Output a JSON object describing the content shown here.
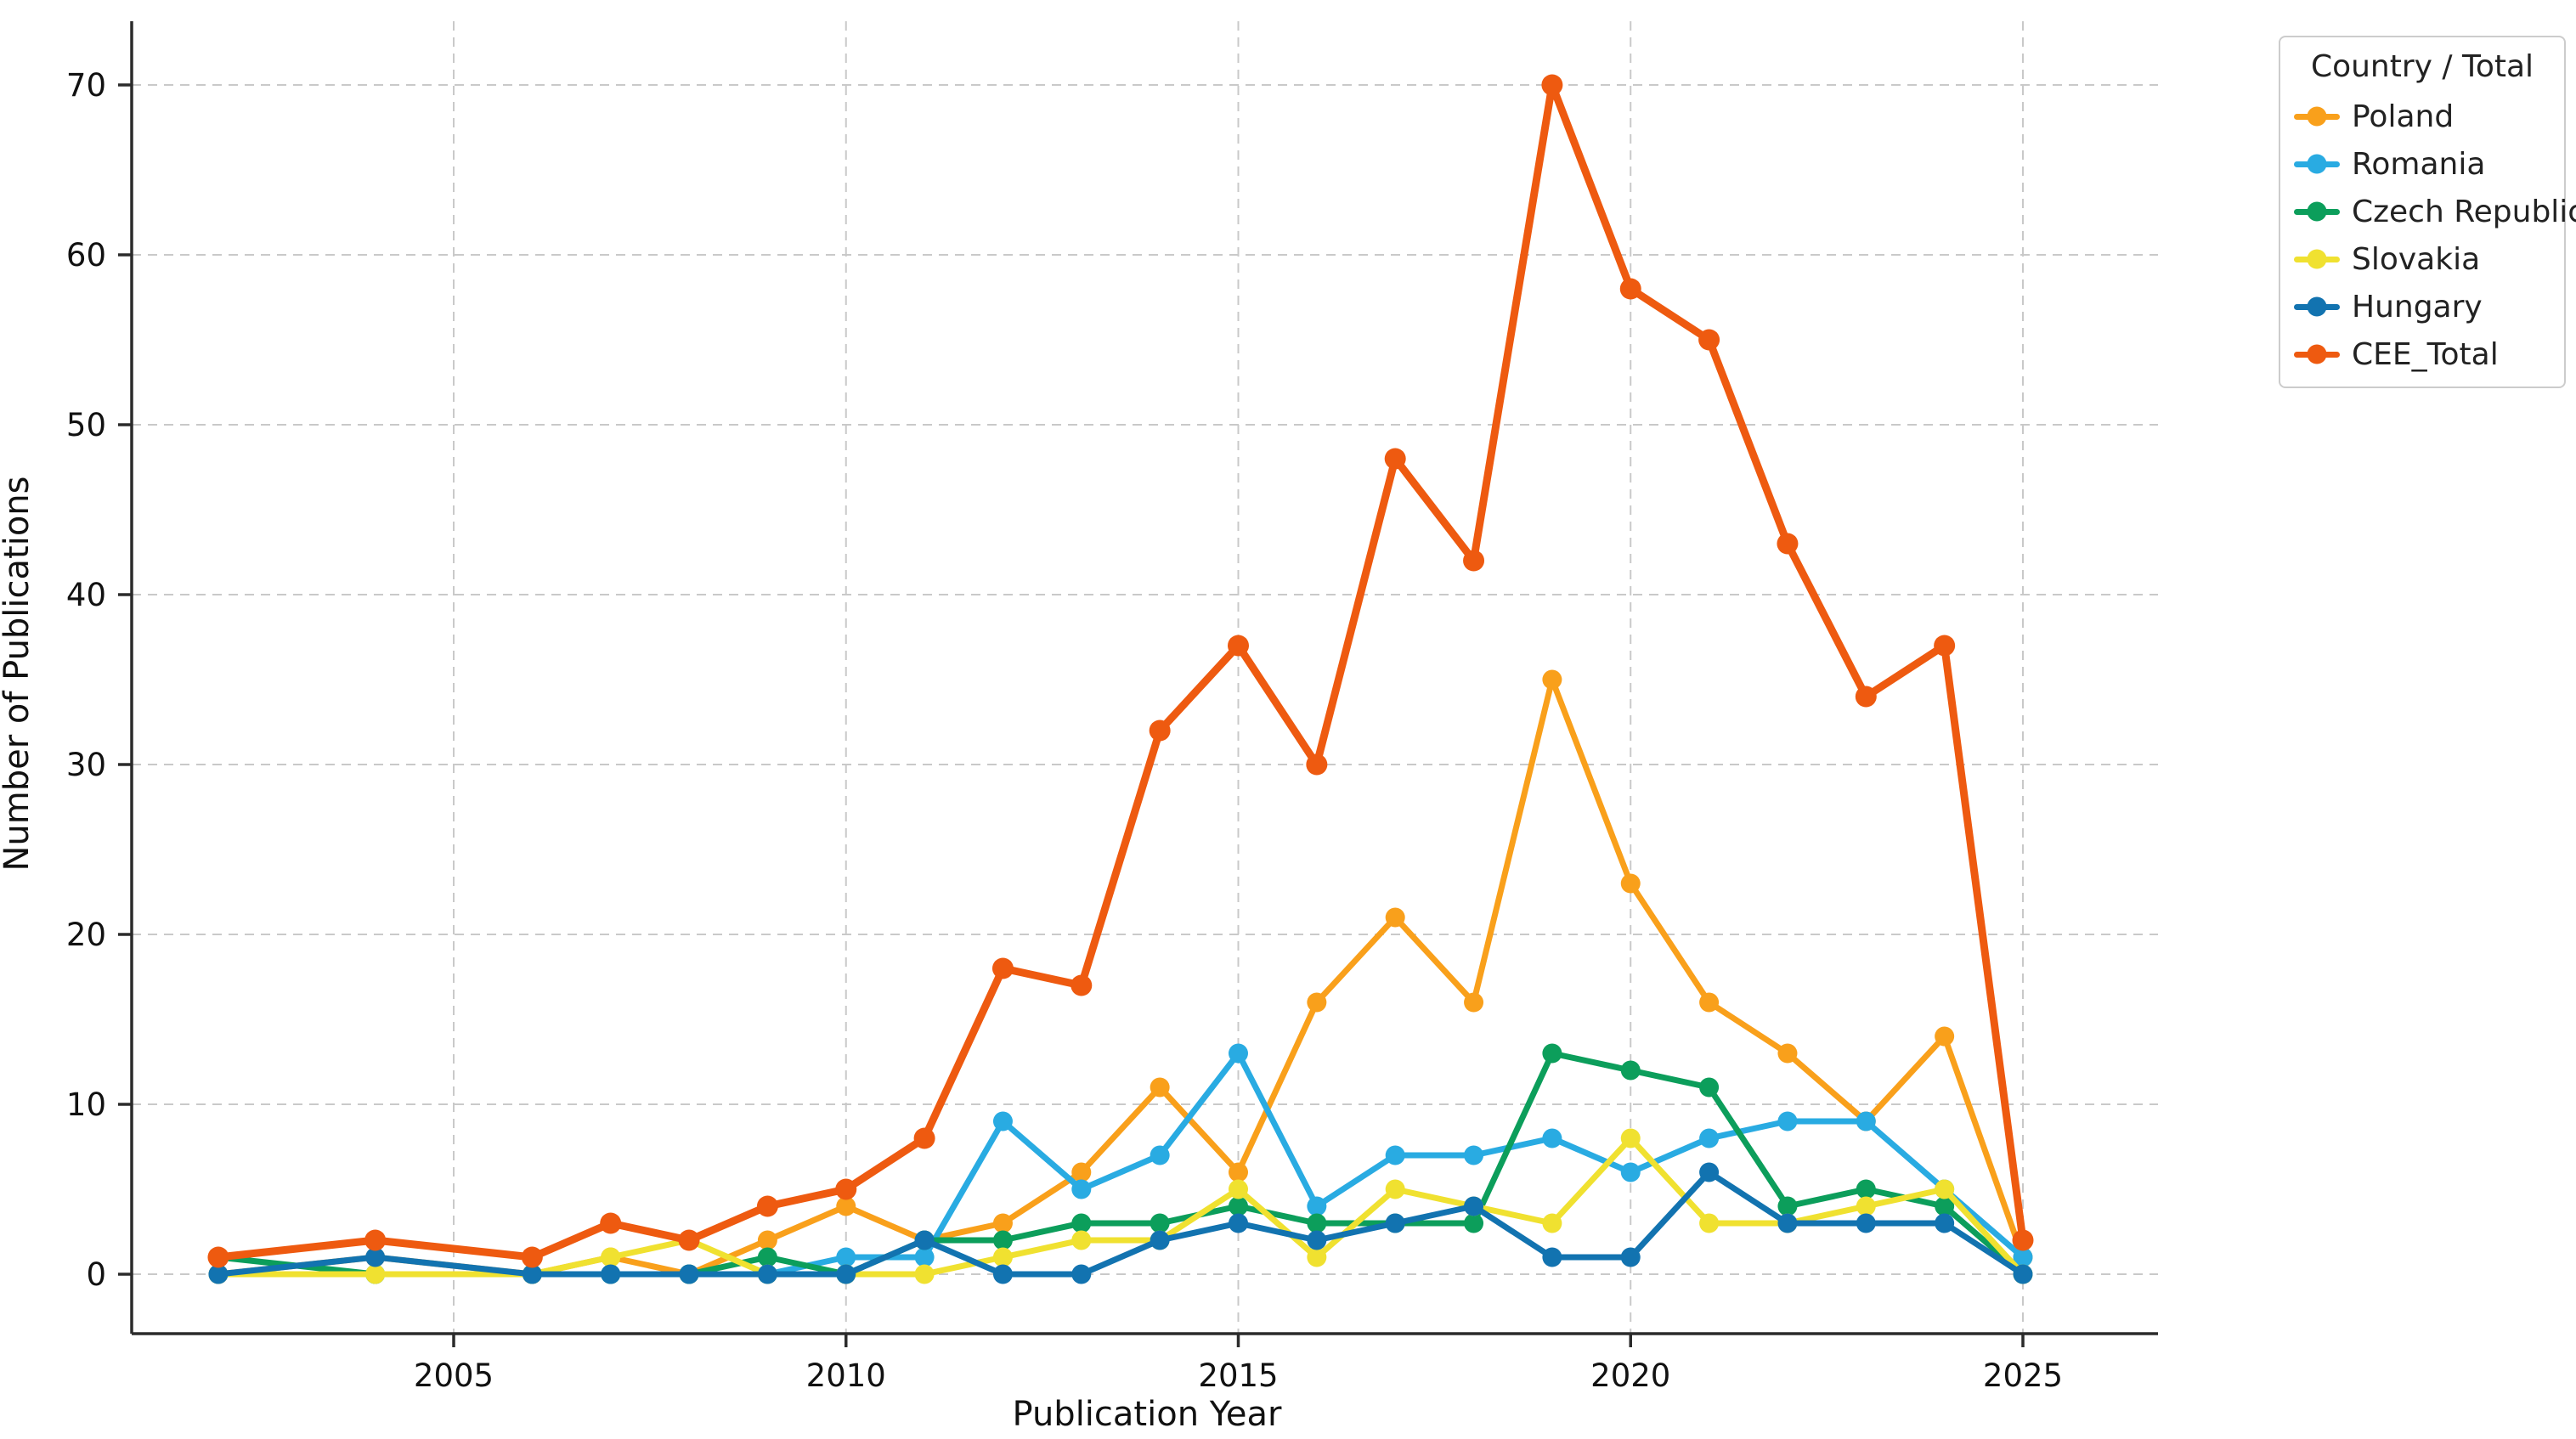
{
  "figure": {
    "xlabel": "Publication Year",
    "ylabel": "Number of Publications",
    "legend_title": "Country / Total"
  },
  "chart_data": {
    "type": "line",
    "title": "",
    "xlabel": "Publication Year",
    "ylabel": "Number of Publications",
    "x": [
      2002,
      2004,
      2006,
      2007,
      2008,
      2009,
      2010,
      2011,
      2012,
      2013,
      2014,
      2015,
      2016,
      2017,
      2018,
      2019,
      2020,
      2021,
      2022,
      2023,
      2024,
      2025
    ],
    "series": [
      {
        "name": "Poland",
        "color": "#F9A01B",
        "values": [
          0,
          1,
          0,
          1,
          0,
          2,
          4,
          2,
          3,
          6,
          11,
          6,
          16,
          21,
          16,
          35,
          23,
          16,
          13,
          9,
          14,
          1
        ]
      },
      {
        "name": "Romania",
        "color": "#29ABE2",
        "values": [
          0,
          0,
          0,
          0,
          0,
          0,
          1,
          1,
          9,
          5,
          7,
          13,
          4,
          7,
          7,
          8,
          6,
          8,
          9,
          9,
          5,
          1
        ]
      },
      {
        "name": "Czech Republic",
        "color": "#0C9E5B",
        "values": [
          1,
          0,
          0,
          0,
          0,
          1,
          0,
          2,
          2,
          3,
          3,
          4,
          3,
          3,
          3,
          13,
          12,
          11,
          4,
          5,
          4,
          0
        ]
      },
      {
        "name": "Slovakia",
        "color": "#F0E130",
        "values": [
          0,
          0,
          0,
          1,
          2,
          0,
          0,
          0,
          1,
          2,
          2,
          5,
          1,
          5,
          4,
          3,
          8,
          3,
          3,
          4,
          5,
          0
        ]
      },
      {
        "name": "Hungary",
        "color": "#1273B0",
        "values": [
          0,
          1,
          0,
          0,
          0,
          0,
          0,
          2,
          0,
          0,
          2,
          3,
          2,
          3,
          4,
          1,
          1,
          6,
          3,
          3,
          3,
          0
        ]
      },
      {
        "name": "CEE_Total",
        "color": "#EE5A10",
        "values": [
          1,
          2,
          1,
          3,
          2,
          4,
          5,
          8,
          18,
          17,
          32,
          37,
          30,
          48,
          42,
          70,
          58,
          55,
          43,
          34,
          37,
          2
        ]
      }
    ],
    "xticks": [
      2005,
      2010,
      2015,
      2020,
      2025
    ],
    "yticks": [
      0,
      10,
      20,
      30,
      40,
      50,
      60,
      70
    ],
    "xlim": [
      2000.9,
      2026.7
    ],
    "ylim": [
      -3.5,
      73.5
    ],
    "grid": true,
    "grid_style": "dashed",
    "legend": {
      "title": "Country / Total",
      "position": "outside upper right"
    },
    "colors": {
      "grid": "#c9c9c9",
      "spine": "#2b2b2b",
      "tick_label": "#111111",
      "background": "#ffffff"
    }
  }
}
